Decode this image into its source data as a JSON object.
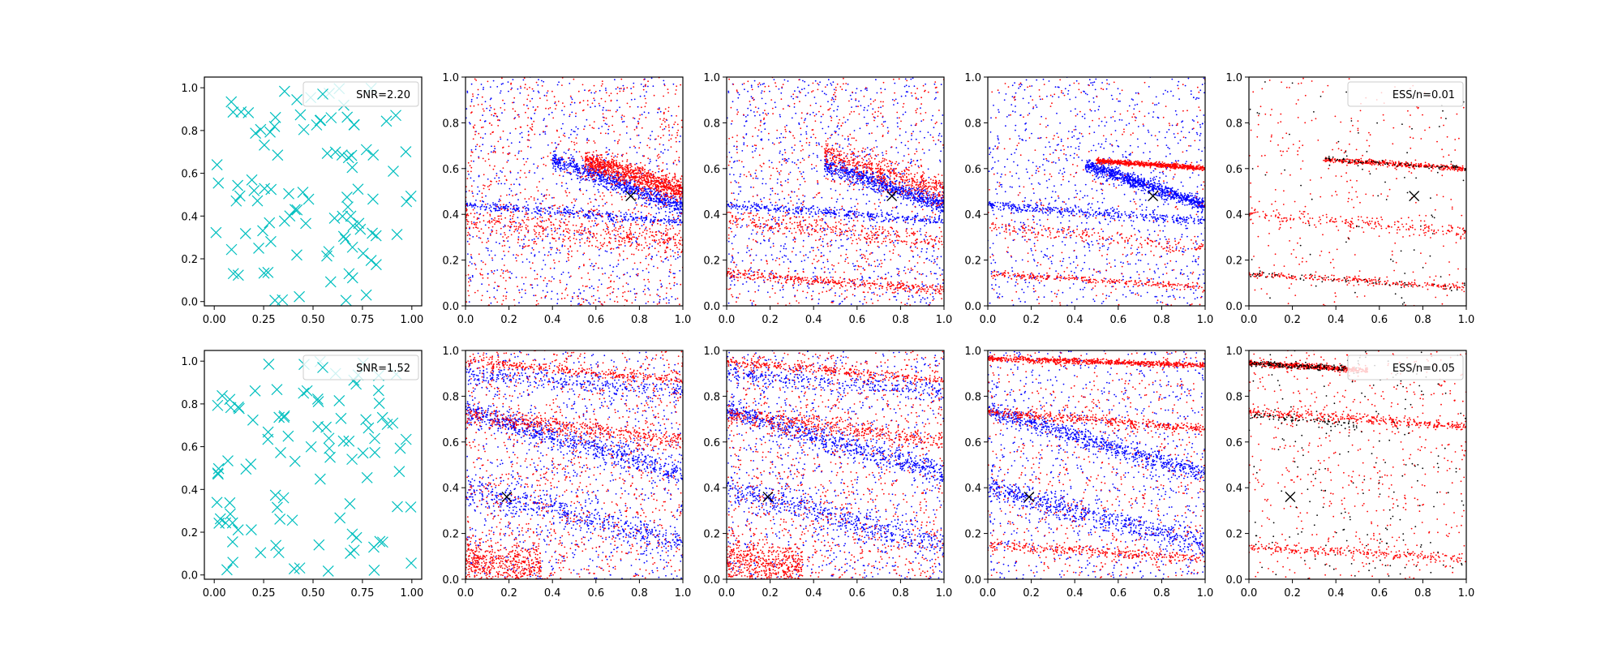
{
  "figure": {
    "rows": 2,
    "cols": 5,
    "colors": {
      "background": "#ffffff",
      "axis": "#000000",
      "cyan": "#00bfbf",
      "blue": "#0000ff",
      "red": "#ff0000",
      "black": "#000000",
      "legend_border": "#cccccc"
    }
  },
  "chart_data": [
    {
      "panel": "row1-col1",
      "type": "scatter",
      "marker": "x",
      "color": "#00bfbf",
      "xlim": [
        -0.05,
        1.05
      ],
      "ylim": [
        -0.02,
        1.05
      ],
      "xticks": [
        "0.00",
        "0.25",
        "0.50",
        "0.75",
        "1.00"
      ],
      "yticks": [
        "0.0",
        "0.2",
        "0.4",
        "0.6",
        "0.8",
        "1.0"
      ],
      "legend": {
        "label": "SNR=2.20",
        "position": "top-right"
      },
      "n_points": 100
    },
    {
      "panel": "row1-col2",
      "type": "scatter",
      "marker": "dot",
      "series": [
        {
          "color": "#ff0000"
        },
        {
          "color": "#0000ff"
        }
      ],
      "xlim": [
        0,
        1
      ],
      "ylim": [
        0,
        1
      ],
      "xticks": [
        "0.0",
        "0.2",
        "0.4",
        "0.6",
        "0.8",
        "1.0"
      ],
      "yticks": [
        "0.0",
        "0.2",
        "0.4",
        "0.6",
        "0.8",
        "1.0"
      ],
      "true_param": {
        "x": 0.76,
        "y": 0.48
      }
    },
    {
      "panel": "row1-col3",
      "type": "scatter",
      "marker": "dot",
      "series": [
        {
          "color": "#ff0000"
        },
        {
          "color": "#0000ff"
        }
      ],
      "xlim": [
        0,
        1
      ],
      "ylim": [
        0,
        1
      ],
      "xticks": [
        "0.0",
        "0.2",
        "0.4",
        "0.6",
        "0.8",
        "1.0"
      ],
      "yticks": [
        "0.0",
        "0.2",
        "0.4",
        "0.6",
        "0.8",
        "1.0"
      ],
      "true_param": {
        "x": 0.76,
        "y": 0.48
      }
    },
    {
      "panel": "row1-col4",
      "type": "scatter",
      "marker": "dot",
      "series": [
        {
          "color": "#ff0000"
        },
        {
          "color": "#0000ff"
        }
      ],
      "xlim": [
        0,
        1
      ],
      "ylim": [
        0,
        1
      ],
      "xticks": [
        "0.0",
        "0.2",
        "0.4",
        "0.6",
        "0.8",
        "1.0"
      ],
      "yticks": [
        "0.0",
        "0.2",
        "0.4",
        "0.6",
        "0.8",
        "1.0"
      ],
      "true_param": {
        "x": 0.76,
        "y": 0.48
      }
    },
    {
      "panel": "row1-col5",
      "type": "scatter",
      "marker": "dot",
      "series": [
        {
          "color": "#ff0000"
        },
        {
          "color": "#000000"
        }
      ],
      "xlim": [
        0,
        1
      ],
      "ylim": [
        0,
        1
      ],
      "xticks": [
        "0.0",
        "0.2",
        "0.4",
        "0.6",
        "0.8",
        "1.0"
      ],
      "yticks": [
        "0.0",
        "0.2",
        "0.4",
        "0.6",
        "0.8",
        "1.0"
      ],
      "legend": {
        "label": "ESS/n=0.01",
        "position": "top-right"
      },
      "true_param": {
        "x": 0.76,
        "y": 0.48
      }
    },
    {
      "panel": "row2-col1",
      "type": "scatter",
      "marker": "x",
      "color": "#00bfbf",
      "xlim": [
        -0.05,
        1.05
      ],
      "ylim": [
        -0.02,
        1.05
      ],
      "xticks": [
        "0.00",
        "0.25",
        "0.50",
        "0.75",
        "1.00"
      ],
      "yticks": [
        "0.0",
        "0.2",
        "0.4",
        "0.6",
        "0.8",
        "1.0"
      ],
      "legend": {
        "label": "SNR=1.52",
        "position": "top-right"
      },
      "n_points": 100
    },
    {
      "panel": "row2-col2",
      "type": "scatter",
      "marker": "dot",
      "series": [
        {
          "color": "#ff0000"
        },
        {
          "color": "#0000ff"
        }
      ],
      "xlim": [
        0,
        1
      ],
      "ylim": [
        0,
        1
      ],
      "xticks": [
        "0.0",
        "0.2",
        "0.4",
        "0.6",
        "0.8",
        "1.0"
      ],
      "yticks": [
        "0.0",
        "0.2",
        "0.4",
        "0.6",
        "0.8",
        "1.0"
      ],
      "true_param": {
        "x": 0.19,
        "y": 0.36
      }
    },
    {
      "panel": "row2-col3",
      "type": "scatter",
      "marker": "dot",
      "series": [
        {
          "color": "#ff0000"
        },
        {
          "color": "#0000ff"
        }
      ],
      "xlim": [
        0,
        1
      ],
      "ylim": [
        0,
        1
      ],
      "xticks": [
        "0.0",
        "0.2",
        "0.4",
        "0.6",
        "0.8",
        "1.0"
      ],
      "yticks": [
        "0.0",
        "0.2",
        "0.4",
        "0.6",
        "0.8",
        "1.0"
      ],
      "true_param": {
        "x": 0.19,
        "y": 0.36
      }
    },
    {
      "panel": "row2-col4",
      "type": "scatter",
      "marker": "dot",
      "series": [
        {
          "color": "#ff0000"
        },
        {
          "color": "#0000ff"
        }
      ],
      "xlim": [
        0,
        1
      ],
      "ylim": [
        0,
        1
      ],
      "xticks": [
        "0.0",
        "0.2",
        "0.4",
        "0.6",
        "0.8",
        "1.0"
      ],
      "yticks": [
        "0.0",
        "0.2",
        "0.4",
        "0.6",
        "0.8",
        "1.0"
      ],
      "true_param": {
        "x": 0.19,
        "y": 0.36
      }
    },
    {
      "panel": "row2-col5",
      "type": "scatter",
      "marker": "dot",
      "series": [
        {
          "color": "#ff0000"
        },
        {
          "color": "#000000"
        }
      ],
      "xlim": [
        0,
        1
      ],
      "ylim": [
        0,
        1
      ],
      "xticks": [
        "0.0",
        "0.2",
        "0.4",
        "0.6",
        "0.8",
        "1.0"
      ],
      "yticks": [
        "0.0",
        "0.2",
        "0.4",
        "0.6",
        "0.8",
        "1.0"
      ],
      "legend": {
        "label": "ESS/n=0.05",
        "position": "top-right"
      },
      "true_param": {
        "x": 0.19,
        "y": 0.36
      }
    }
  ]
}
